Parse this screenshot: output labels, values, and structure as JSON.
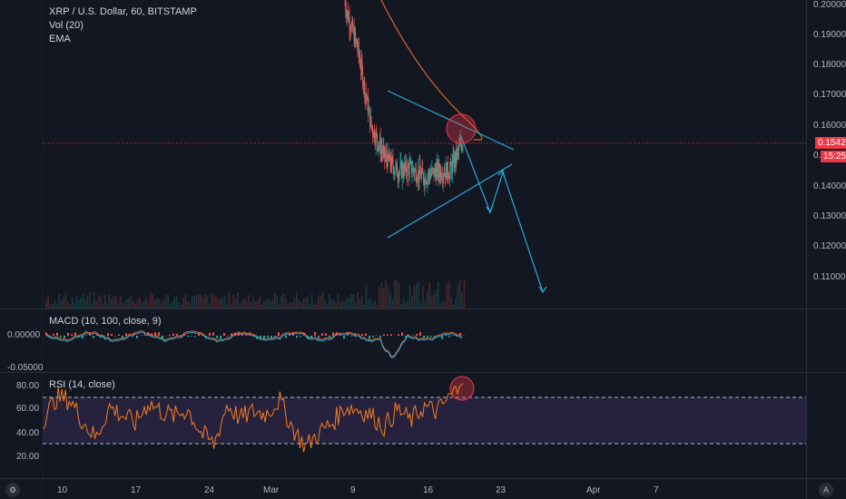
{
  "legends": {
    "main": [
      "XRP / U.S. Dollar, 60, BITSTAMP",
      "Vol (20)",
      "EMA"
    ],
    "macd": "MACD (10, 100, close, 9)",
    "rsi": "RSI (14, close)"
  },
  "price_axis": [
    "0.20000",
    "0.19000",
    "0.18000",
    "0.17000",
    "0.16000",
    "0.15000",
    "0.14000",
    "0.13000",
    "0.12000",
    "0.11000"
  ],
  "macd_axis": [
    "0.00000",
    "-0.05000"
  ],
  "rsi_axis": [
    "80.00",
    "60.00",
    "40.00",
    "20.00"
  ],
  "time_axis": [
    "10",
    "17",
    "24",
    "Mar",
    "9",
    "16",
    "23",
    "Apr",
    "7"
  ],
  "tags": {
    "last_price": "0.15422",
    "countdown": "15:25"
  },
  "buttons": {
    "gear": "⚙",
    "auto": "A"
  },
  "colors": {
    "bg": "#131722",
    "price_line": "#f23645",
    "rsi": "#f57c1f",
    "ema": "#c9612c",
    "trend": "#2aa8d8",
    "circle": "#f23645",
    "rsi_band": "#7e57c2"
  },
  "chart_data": [
    {
      "type": "candlestick",
      "title": "XRP / U.S. Dollar, 60, BITSTAMP",
      "ylim": [
        0.105,
        0.2005
      ],
      "last_price": 0.15422,
      "x_ticks": [
        "10",
        "17",
        "24",
        "Mar",
        "9",
        "16",
        "23",
        "Apr",
        "7"
      ],
      "close_path": [
        [
          "Mar 10",
          0.2
        ],
        [
          "Mar 11",
          0.185
        ],
        [
          "Mar 12",
          0.16
        ],
        [
          "Mar 13",
          0.15
        ],
        [
          "Mar 14",
          0.145
        ],
        [
          "Mar 15",
          0.146
        ],
        [
          "Mar 16",
          0.143
        ],
        [
          "Mar 17",
          0.145
        ],
        [
          "Mar 18",
          0.145
        ],
        [
          "Mar 19",
          0.155
        ]
      ]
    },
    {
      "type": "line",
      "title": "MACD (10, 100, close, 9)",
      "ylim": [
        -0.05,
        0.0
      ]
    },
    {
      "type": "line",
      "title": "RSI (14, close)",
      "ylim": [
        0,
        100
      ],
      "bands": [
        30,
        70
      ],
      "series": [
        {
          "values": [
            52,
            70,
            68,
            50,
            35,
            62,
            55,
            48,
            66,
            58,
            54,
            60,
            40,
            30,
            64,
            52,
            58,
            56,
            68,
            44,
            28,
            40,
            48,
            62,
            60,
            55,
            45,
            60,
            50,
            62,
            58,
            70,
            82
          ]
        }
      ]
    }
  ]
}
